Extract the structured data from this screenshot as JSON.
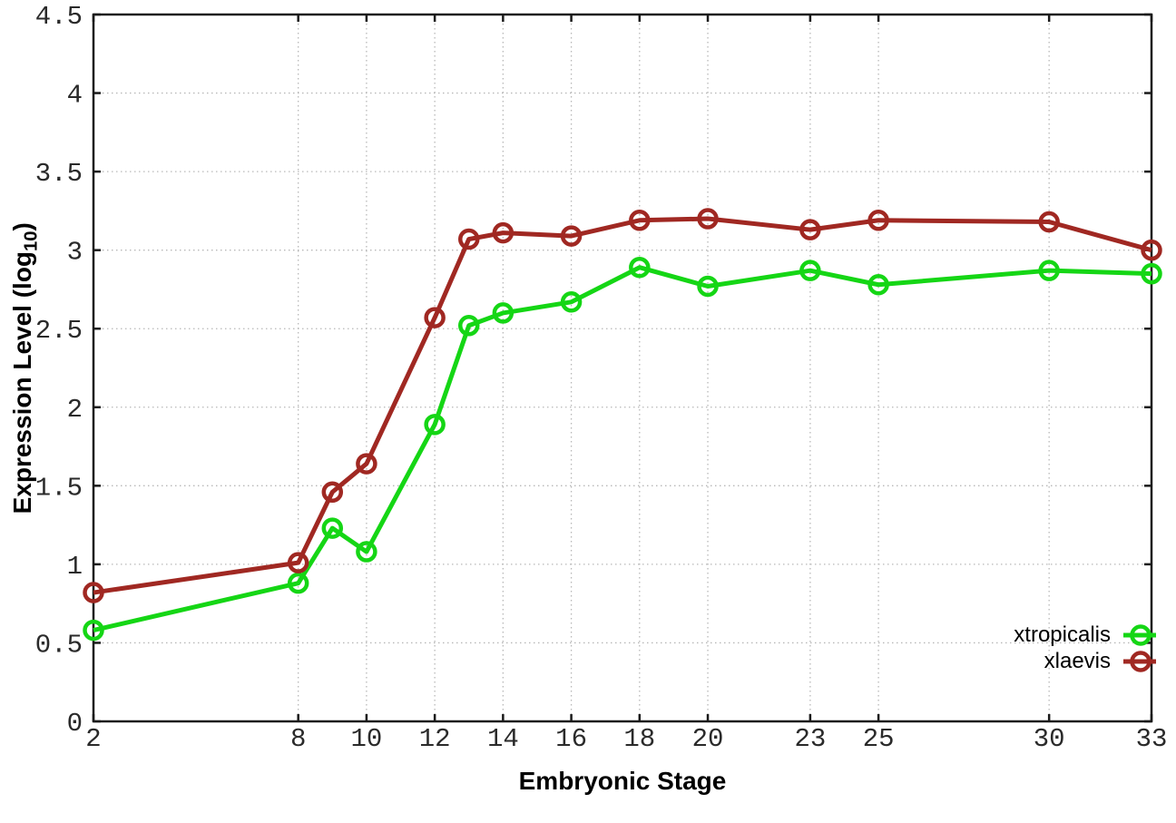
{
  "figure": {
    "xlabel": "Embryonic Stage",
    "ylabel_prefix": "Expression Level (log",
    "ylabel_sub": "10",
    "ylabel_suffix": ")"
  },
  "chart_data": {
    "type": "line",
    "title": "",
    "xlabel": "Embryonic Stage",
    "ylabel": "Expression Level (log10)",
    "x": [
      2,
      8,
      9,
      10,
      12,
      13,
      14,
      16,
      18,
      20,
      23,
      25,
      30,
      33
    ],
    "xlim": [
      2,
      33
    ],
    "ylim": [
      0,
      4.5
    ],
    "xticks": [
      2,
      8,
      10,
      12,
      14,
      16,
      18,
      20,
      23,
      25,
      30,
      33
    ],
    "yticks": [
      0,
      0.5,
      1,
      1.5,
      2,
      2.5,
      3,
      3.5,
      4,
      4.5
    ],
    "ytick_labels": [
      "0",
      "0.5",
      "1",
      "1.5",
      "2",
      "2.5",
      "3",
      "3.5",
      "4",
      "4.5"
    ],
    "grid": true,
    "legend_position": "inside bottom-right",
    "marker": "open-circle",
    "series": [
      {
        "name": "xtropicalis",
        "color": "#15d615",
        "values": [
          0.58,
          0.88,
          1.23,
          1.08,
          1.89,
          2.52,
          2.6,
          2.67,
          2.89,
          2.77,
          2.87,
          2.78,
          2.87,
          2.85
        ]
      },
      {
        "name": "xlaevis",
        "color": "#a02822",
        "values": [
          0.82,
          1.01,
          1.46,
          1.64,
          2.57,
          3.07,
          3.11,
          3.09,
          3.19,
          3.2,
          3.13,
          3.19,
          3.18,
          3.0
        ]
      }
    ]
  },
  "style": {
    "background": "#ffffff",
    "axis_color": "#1a1a1a",
    "grid_color": "#b8b8b8",
    "tick_label_color": "#2a2a2a"
  }
}
